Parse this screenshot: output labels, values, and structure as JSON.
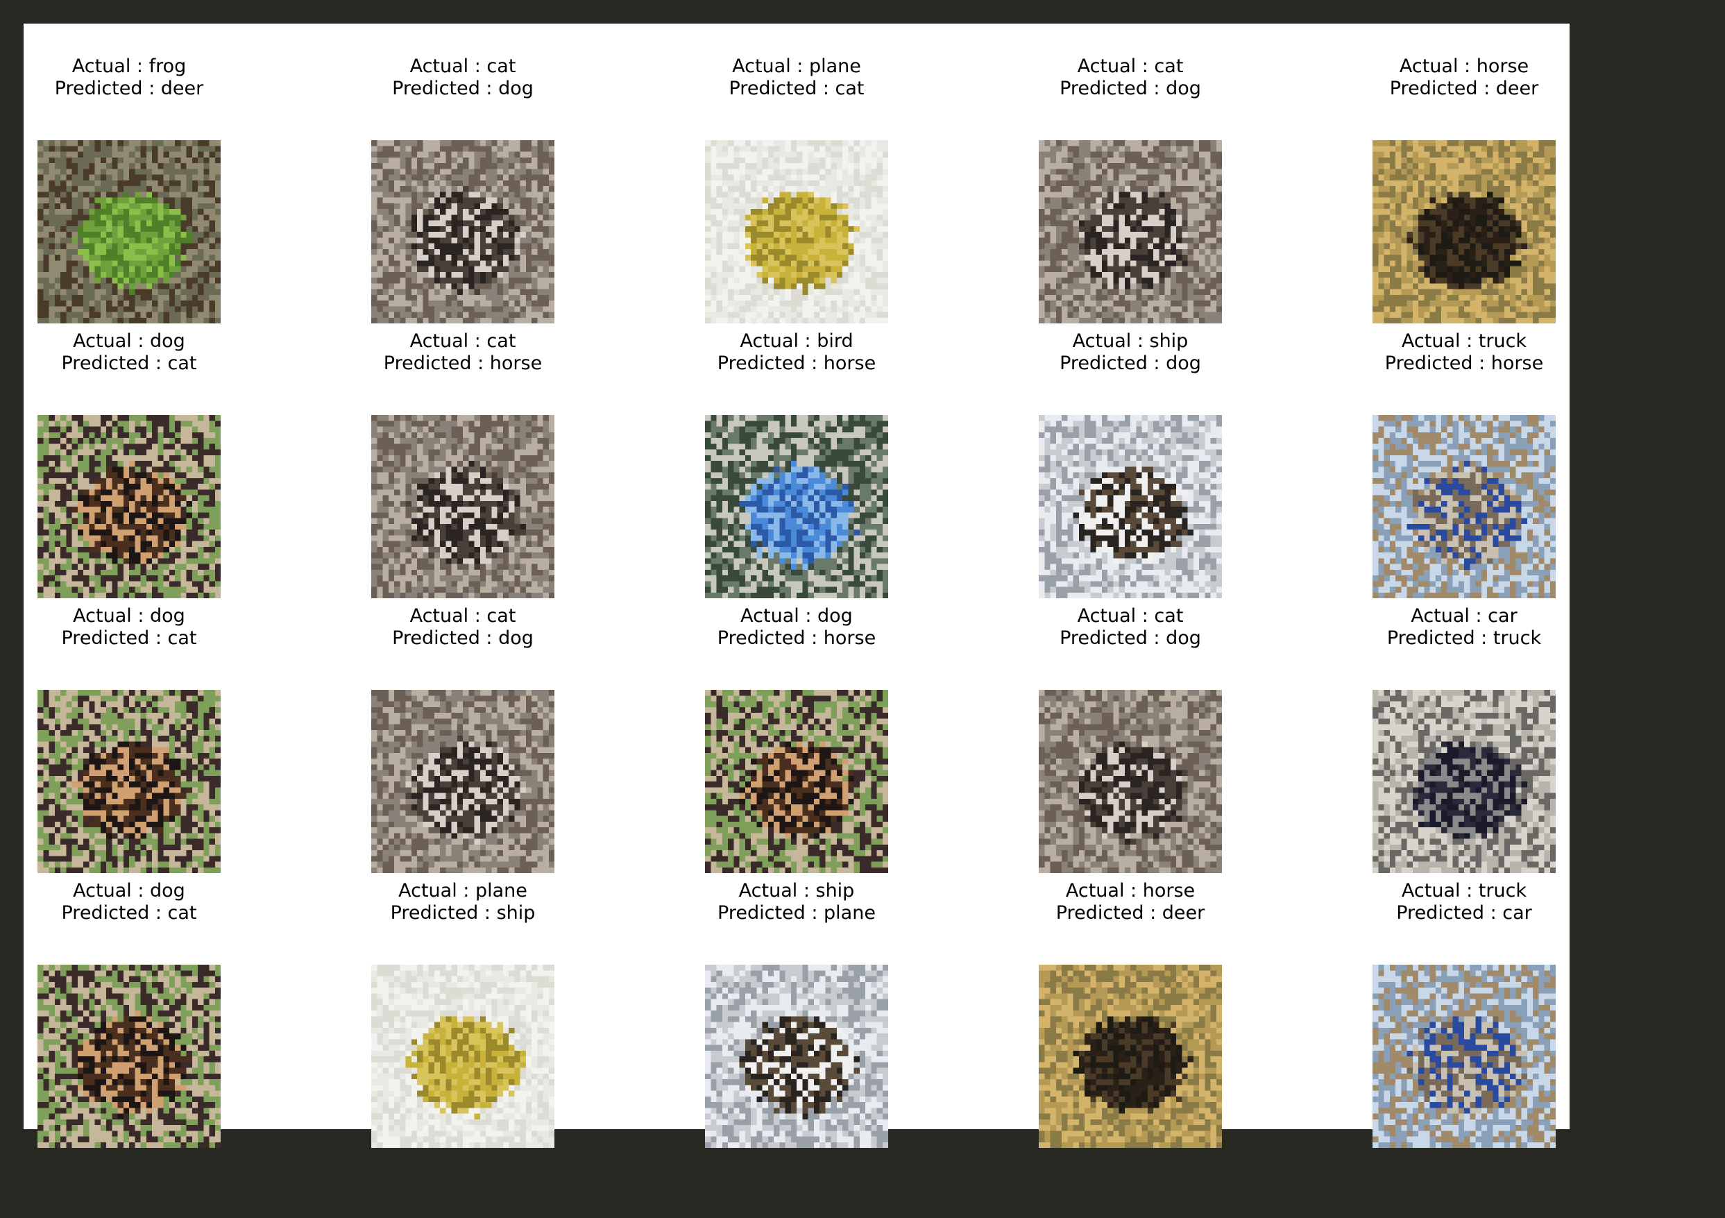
{
  "notebook": {
    "figure": {
      "grid_columns": 5,
      "grid_rows": 4,
      "cells": [
        {
          "actual": "Actual : frog",
          "predicted": "Predicted : deer",
          "subject": "frog"
        },
        {
          "actual": "Actual : cat",
          "predicted": "Predicted : dog",
          "subject": "cat"
        },
        {
          "actual": "Actual : plane",
          "predicted": "Predicted : cat",
          "subject": "plane"
        },
        {
          "actual": "Actual : cat",
          "predicted": "Predicted : dog",
          "subject": "cat"
        },
        {
          "actual": "Actual : horse",
          "predicted": "Predicted : deer",
          "subject": "horse"
        },
        {
          "actual": "Actual : dog",
          "predicted": "Predicted : cat",
          "subject": "dog"
        },
        {
          "actual": "Actual : cat",
          "predicted": "Predicted : horse",
          "subject": "cat"
        },
        {
          "actual": "Actual : bird",
          "predicted": "Predicted : horse",
          "subject": "bird"
        },
        {
          "actual": "Actual : ship",
          "predicted": "Predicted : dog",
          "subject": "ship"
        },
        {
          "actual": "Actual : truck",
          "predicted": "Predicted : horse",
          "subject": "truck"
        },
        {
          "actual": "Actual : dog",
          "predicted": "Predicted : cat",
          "subject": "dog"
        },
        {
          "actual": "Actual : cat",
          "predicted": "Predicted : dog",
          "subject": "cat"
        },
        {
          "actual": "Actual : dog",
          "predicted": "Predicted : horse",
          "subject": "dog"
        },
        {
          "actual": "Actual : cat",
          "predicted": "Predicted : dog",
          "subject": "cat"
        },
        {
          "actual": "Actual : car",
          "predicted": "Predicted : truck",
          "subject": "car"
        },
        {
          "actual": "Actual : dog",
          "predicted": "Predicted : cat",
          "subject": "dog"
        },
        {
          "actual": "Actual : plane",
          "predicted": "Predicted : ship",
          "subject": "plane"
        },
        {
          "actual": "Actual : ship",
          "predicted": "Predicted : plane",
          "subject": "ship"
        },
        {
          "actual": "Actual : horse",
          "predicted": "Predicted : deer",
          "subject": "horse"
        },
        {
          "actual": "Actual : truck",
          "predicted": "Predicted : car",
          "subject": "truck"
        }
      ]
    },
    "colors": {
      "notebook_background": "#282923",
      "figure_background": "#ffffff",
      "title_text": "#000000"
    }
  }
}
